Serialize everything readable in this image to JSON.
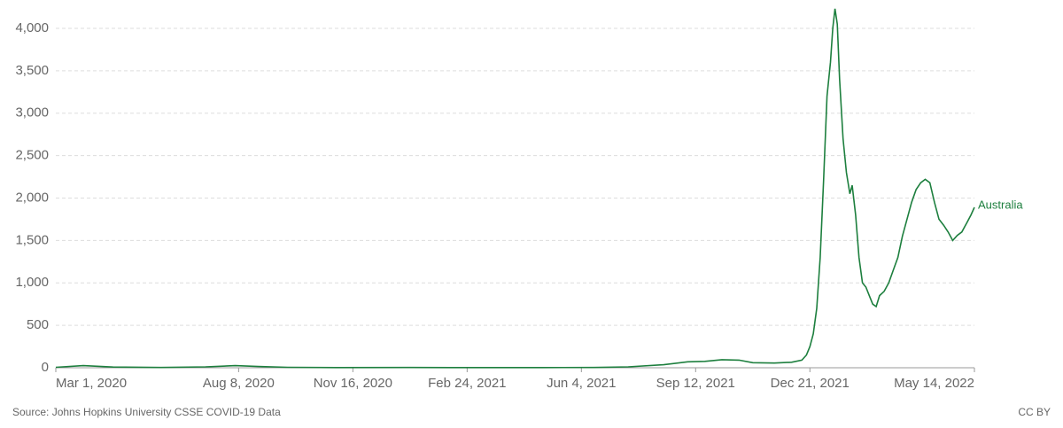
{
  "chart_data": {
    "type": "line",
    "x": [
      "2020-03-01",
      "2020-03-25",
      "2020-04-20",
      "2020-06-01",
      "2020-07-10",
      "2020-08-05",
      "2020-08-25",
      "2020-09-20",
      "2020-11-01",
      "2021-01-05",
      "2021-03-01",
      "2021-05-01",
      "2021-06-15",
      "2021-07-15",
      "2021-08-15",
      "2021-09-05",
      "2021-09-20",
      "2021-10-05",
      "2021-10-20",
      "2021-11-01",
      "2021-11-20",
      "2021-12-05",
      "2021-12-14",
      "2021-12-18",
      "2021-12-21",
      "2021-12-24",
      "2021-12-27",
      "2021-12-30",
      "2022-01-02",
      "2022-01-05",
      "2022-01-08",
      "2022-01-10",
      "2022-01-12",
      "2022-01-14",
      "2022-01-16",
      "2022-01-19",
      "2022-01-22",
      "2022-01-25",
      "2022-01-27",
      "2022-01-30",
      "2022-02-02",
      "2022-02-05",
      "2022-02-08",
      "2022-02-11",
      "2022-02-14",
      "2022-02-17",
      "2022-02-20",
      "2022-02-24",
      "2022-02-28",
      "2022-03-04",
      "2022-03-08",
      "2022-03-12",
      "2022-03-16",
      "2022-03-20",
      "2022-03-24",
      "2022-03-28",
      "2022-04-01",
      "2022-04-05",
      "2022-04-09",
      "2022-04-13",
      "2022-04-17",
      "2022-04-21",
      "2022-04-25",
      "2022-04-29",
      "2022-05-03",
      "2022-05-07",
      "2022-05-11",
      "2022-05-14"
    ],
    "series": [
      {
        "name": "Australia",
        "color": "#1d7f3e",
        "values": [
          5,
          25,
          8,
          3,
          10,
          25,
          15,
          5,
          2,
          3,
          2,
          2,
          3,
          10,
          35,
          70,
          75,
          95,
          90,
          60,
          55,
          65,
          90,
          150,
          250,
          400,
          700,
          1300,
          2200,
          3200,
          3600,
          4000,
          4230,
          4050,
          3400,
          2700,
          2300,
          2050,
          2150,
          1800,
          1300,
          1000,
          950,
          850,
          750,
          720,
          850,
          900,
          1000,
          1150,
          1300,
          1550,
          1750,
          1950,
          2100,
          2180,
          2220,
          2180,
          1950,
          1750,
          1680,
          1600,
          1500,
          1560,
          1600,
          1700,
          1800,
          1890
        ]
      }
    ],
    "xlim": [
      "2020-03-01",
      "2022-05-14"
    ],
    "xticks": [
      {
        "value": "2020-03-01",
        "label": "Mar 1, 2020"
      },
      {
        "value": "2020-08-08",
        "label": "Aug 8, 2020"
      },
      {
        "value": "2020-11-16",
        "label": "Nov 16, 2020"
      },
      {
        "value": "2021-02-24",
        "label": "Feb 24, 2021"
      },
      {
        "value": "2021-06-04",
        "label": "Jun 4, 2021"
      },
      {
        "value": "2021-09-12",
        "label": "Sep 12, 2021"
      },
      {
        "value": "2021-12-21",
        "label": "Dec 21, 2021"
      },
      {
        "value": "2022-05-14",
        "label": "May 14, 2022"
      }
    ],
    "ylim": [
      0,
      4250
    ],
    "yticks": [
      0,
      500,
      {
        "value": 1000,
        "label": "1,000"
      },
      {
        "value": 1500,
        "label": "1,500"
      },
      {
        "value": 2000,
        "label": "2,000"
      },
      {
        "value": 2500,
        "label": "2,500"
      },
      {
        "value": 3000,
        "label": "3,000"
      },
      {
        "value": 3500,
        "label": "3,500"
      },
      {
        "value": 4000,
        "label": "4,000"
      }
    ],
    "grid": true,
    "source": "Source: Johns Hopkins University CSSE COVID-19 Data",
    "license": "CC BY"
  }
}
